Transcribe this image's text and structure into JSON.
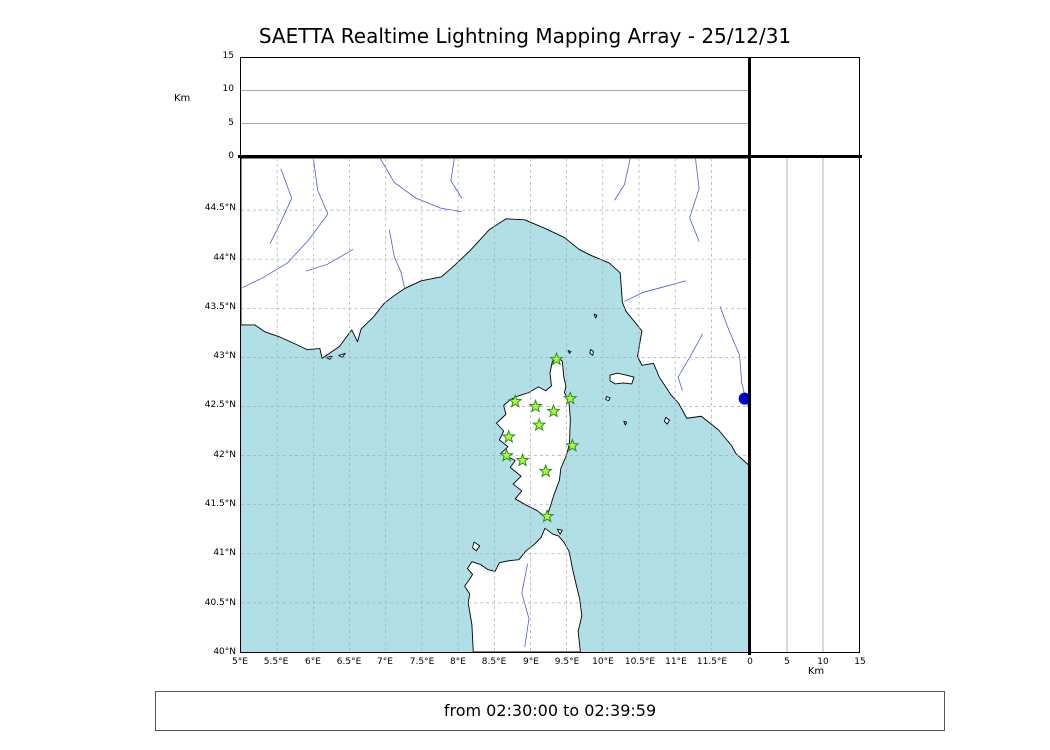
{
  "title": "SAETTA Realtime Lightning Mapping Array - 25/12/31",
  "status_bar": {
    "text": "from 02:30:00 to 02:39:59"
  },
  "colors": {
    "sea": "#b0e0e6",
    "land": "#ffffff",
    "coast": "#000000",
    "river": "#4a5fd0",
    "grid": "#a8a8a8",
    "panel_grid": "#8c8c8c",
    "station_fill": "#adff2f",
    "station_edge": "#2e8b2e",
    "detection_dot": "#0000cd"
  },
  "map": {
    "bounds": {
      "lon_min": 5.0,
      "lon_max": 12.02,
      "lat_min": 40.0,
      "lat_max": 45.03
    },
    "grid_step_deg": 0.5,
    "lon_ticks": [
      {
        "v": 5.0,
        "label": "5°E"
      },
      {
        "v": 5.5,
        "label": "5.5°E"
      },
      {
        "v": 6.0,
        "label": "6°E"
      },
      {
        "v": 6.5,
        "label": "6.5°E"
      },
      {
        "v": 7.0,
        "label": "7°E"
      },
      {
        "v": 7.5,
        "label": "7.5°E"
      },
      {
        "v": 8.0,
        "label": "8°E"
      },
      {
        "v": 8.5,
        "label": "8.5°E"
      },
      {
        "v": 9.0,
        "label": "9°E"
      },
      {
        "v": 9.5,
        "label": "9.5°E"
      },
      {
        "v": 10.0,
        "label": "10°E"
      },
      {
        "v": 10.5,
        "label": "10.5°E"
      },
      {
        "v": 11.0,
        "label": "11°E"
      },
      {
        "v": 11.5,
        "label": "11.5°E"
      }
    ],
    "lat_ticks": [
      {
        "v": 40.0,
        "label": "40°N"
      },
      {
        "v": 40.5,
        "label": "40.5°N"
      },
      {
        "v": 41.0,
        "label": "41°N"
      },
      {
        "v": 41.5,
        "label": "41.5°N"
      },
      {
        "v": 42.0,
        "label": "42°N"
      },
      {
        "v": 42.5,
        "label": "42.5°N"
      },
      {
        "v": 43.0,
        "label": "43°N"
      },
      {
        "v": 43.5,
        "label": "43.5°N"
      },
      {
        "v": 44.0,
        "label": "44°N"
      },
      {
        "v": 44.5,
        "label": "44.5°N"
      }
    ]
  },
  "altitude_axis": {
    "label": "Km",
    "max_km": 15,
    "tick_values": [
      0,
      5,
      10,
      15
    ],
    "gridline_values": [
      5,
      10
    ]
  },
  "stations": [
    {
      "lon": 9.36,
      "lat": 42.98
    },
    {
      "lon": 8.79,
      "lat": 42.55
    },
    {
      "lon": 9.07,
      "lat": 42.5
    },
    {
      "lon": 9.32,
      "lat": 42.45
    },
    {
      "lon": 9.55,
      "lat": 42.58
    },
    {
      "lon": 9.12,
      "lat": 42.31
    },
    {
      "lon": 8.7,
      "lat": 42.19
    },
    {
      "lon": 9.58,
      "lat": 42.1
    },
    {
      "lon": 8.67,
      "lat": 42.0
    },
    {
      "lon": 8.89,
      "lat": 41.95
    },
    {
      "lon": 9.21,
      "lat": 41.84
    },
    {
      "lon": 9.23,
      "lat": 41.38
    }
  ],
  "detection": {
    "lon": 11.96,
    "lat": 42.58
  },
  "features": {
    "land": [
      [
        [
          12.02,
          41.9
        ],
        [
          11.84,
          42.02
        ],
        [
          11.78,
          42.1
        ],
        [
          11.6,
          42.26
        ],
        [
          11.36,
          42.4
        ],
        [
          11.16,
          42.38
        ],
        [
          11.05,
          42.53
        ],
        [
          10.94,
          42.62
        ],
        [
          10.78,
          42.8
        ],
        [
          10.7,
          42.94
        ],
        [
          10.54,
          42.92
        ],
        [
          10.48,
          43.01
        ],
        [
          10.54,
          43.27
        ],
        [
          10.32,
          43.47
        ],
        [
          10.27,
          43.56
        ],
        [
          10.24,
          43.86
        ],
        [
          10.09,
          43.96
        ],
        [
          9.83,
          44.04
        ],
        [
          9.67,
          44.1
        ],
        [
          9.47,
          44.22
        ],
        [
          9.21,
          44.31
        ],
        [
          8.92,
          44.4
        ],
        [
          8.66,
          44.41
        ],
        [
          8.43,
          44.3
        ],
        [
          8.17,
          44.09
        ],
        [
          7.94,
          43.93
        ],
        [
          7.77,
          43.82
        ],
        [
          7.49,
          43.78
        ],
        [
          7.26,
          43.7
        ],
        [
          7.1,
          43.62
        ],
        [
          6.98,
          43.55
        ],
        [
          6.83,
          43.41
        ],
        [
          6.66,
          43.29
        ],
        [
          6.61,
          43.16
        ],
        [
          6.53,
          43.28
        ],
        [
          6.36,
          43.11
        ],
        [
          6.12,
          42.99
        ],
        [
          6.09,
          43.09
        ],
        [
          5.91,
          43.08
        ],
        [
          5.77,
          43.13
        ],
        [
          5.53,
          43.21
        ],
        [
          5.33,
          43.26
        ],
        [
          5.19,
          43.33
        ],
        [
          5.0,
          43.33
        ],
        [
          5.0,
          45.03
        ],
        [
          12.02,
          45.03
        ]
      ],
      [
        [
          9.35,
          43.01
        ],
        [
          9.44,
          42.96
        ],
        [
          9.46,
          42.8
        ],
        [
          9.49,
          42.71
        ],
        [
          9.47,
          42.64
        ],
        [
          9.53,
          42.56
        ],
        [
          9.55,
          42.38
        ],
        [
          9.54,
          42.12
        ],
        [
          9.49,
          41.99
        ],
        [
          9.42,
          41.87
        ],
        [
          9.4,
          41.75
        ],
        [
          9.32,
          41.59
        ],
        [
          9.27,
          41.47
        ],
        [
          9.22,
          41.37
        ],
        [
          9.09,
          41.44
        ],
        [
          8.93,
          41.5
        ],
        [
          8.79,
          41.56
        ],
        [
          8.88,
          41.64
        ],
        [
          8.76,
          41.71
        ],
        [
          8.87,
          41.79
        ],
        [
          8.72,
          41.88
        ],
        [
          8.79,
          41.95
        ],
        [
          8.59,
          42.02
        ],
        [
          8.69,
          42.09
        ],
        [
          8.57,
          42.16
        ],
        [
          8.63,
          42.25
        ],
        [
          8.53,
          42.33
        ],
        [
          8.66,
          42.42
        ],
        [
          8.63,
          42.51
        ],
        [
          8.72,
          42.57
        ],
        [
          8.84,
          42.61
        ],
        [
          8.97,
          42.64
        ],
        [
          9.11,
          42.7
        ],
        [
          9.21,
          42.66
        ],
        [
          9.29,
          42.71
        ],
        [
          9.27,
          42.84
        ],
        [
          9.3,
          42.95
        ]
      ],
      [
        [
          8.21,
          40.0
        ],
        [
          8.19,
          40.28
        ],
        [
          8.14,
          40.5
        ],
        [
          8.16,
          40.59
        ],
        [
          8.09,
          40.67
        ],
        [
          8.15,
          40.73
        ],
        [
          8.2,
          40.79
        ],
        [
          8.13,
          40.85
        ],
        [
          8.19,
          40.92
        ],
        [
          8.31,
          40.89
        ],
        [
          8.41,
          40.84
        ],
        [
          8.51,
          40.82
        ],
        [
          8.57,
          40.91
        ],
        [
          8.71,
          40.93
        ],
        [
          8.84,
          40.94
        ],
        [
          8.94,
          41.03
        ],
        [
          9.06,
          41.1
        ],
        [
          9.15,
          41.17
        ],
        [
          9.2,
          41.26
        ],
        [
          9.31,
          41.2
        ],
        [
          9.39,
          41.18
        ],
        [
          9.46,
          41.12
        ],
        [
          9.53,
          41.03
        ],
        [
          9.56,
          40.93
        ],
        [
          9.58,
          40.85
        ],
        [
          9.63,
          40.69
        ],
        [
          9.68,
          40.54
        ],
        [
          9.71,
          40.37
        ],
        [
          9.66,
          40.21
        ],
        [
          9.69,
          40.0
        ]
      ],
      [
        [
          10.1,
          42.82
        ],
        [
          10.2,
          42.84
        ],
        [
          10.32,
          42.82
        ],
        [
          10.43,
          42.8
        ],
        [
          10.4,
          42.73
        ],
        [
          10.28,
          42.74
        ],
        [
          10.17,
          42.73
        ],
        [
          10.1,
          42.76
        ]
      ],
      [
        [
          9.83,
          43.08
        ],
        [
          9.87,
          43.06
        ],
        [
          9.86,
          43.02
        ],
        [
          9.82,
          43.04
        ]
      ],
      [
        [
          9.88,
          43.44
        ],
        [
          9.92,
          43.43
        ],
        [
          9.9,
          43.4
        ]
      ],
      [
        [
          9.52,
          43.07
        ],
        [
          9.56,
          43.06
        ],
        [
          9.54,
          43.04
        ]
      ],
      [
        [
          10.05,
          42.6
        ],
        [
          10.1,
          42.59
        ],
        [
          10.08,
          42.56
        ],
        [
          10.04,
          42.57
        ]
      ],
      [
        [
          10.29,
          42.35
        ],
        [
          10.33,
          42.34
        ],
        [
          10.31,
          42.31
        ]
      ],
      [
        [
          10.87,
          42.39
        ],
        [
          10.92,
          42.36
        ],
        [
          10.89,
          42.32
        ],
        [
          10.85,
          42.35
        ]
      ],
      [
        [
          6.17,
          43.0
        ],
        [
          6.26,
          43.01
        ],
        [
          6.23,
          42.98
        ]
      ],
      [
        [
          6.35,
          43.02
        ],
        [
          6.44,
          43.04
        ],
        [
          6.4,
          43.0
        ]
      ],
      [
        [
          8.22,
          41.12
        ],
        [
          8.3,
          41.08
        ],
        [
          8.25,
          41.03
        ],
        [
          8.2,
          41.06
        ]
      ],
      [
        [
          9.37,
          41.25
        ],
        [
          9.44,
          41.24
        ],
        [
          9.41,
          41.2
        ]
      ]
    ],
    "rivers": [
      [
        [
          6.0,
          45.03
        ],
        [
          6.06,
          44.7
        ],
        [
          6.2,
          44.46
        ],
        [
          5.94,
          44.2
        ],
        [
          5.64,
          43.96
        ],
        [
          5.3,
          43.81
        ],
        [
          5.02,
          43.71
        ]
      ],
      [
        [
          6.55,
          44.1
        ],
        [
          6.2,
          43.95
        ],
        [
          5.9,
          43.88
        ]
      ],
      [
        [
          7.05,
          44.3
        ],
        [
          7.12,
          44.02
        ],
        [
          7.21,
          43.87
        ],
        [
          7.26,
          43.71
        ]
      ],
      [
        [
          6.92,
          45.03
        ],
        [
          7.12,
          44.78
        ],
        [
          7.42,
          44.62
        ],
        [
          7.76,
          44.52
        ],
        [
          8.05,
          44.48
        ]
      ],
      [
        [
          7.95,
          45.03
        ],
        [
          7.9,
          44.8
        ],
        [
          8.05,
          44.62
        ]
      ],
      [
        [
          10.38,
          45.03
        ],
        [
          10.3,
          44.76
        ],
        [
          10.16,
          44.6
        ]
      ],
      [
        [
          11.28,
          45.03
        ],
        [
          11.33,
          44.72
        ],
        [
          11.2,
          44.42
        ],
        [
          11.33,
          44.18
        ]
      ],
      [
        [
          11.15,
          43.78
        ],
        [
          10.85,
          43.72
        ],
        [
          10.55,
          43.66
        ],
        [
          10.3,
          43.57
        ]
      ],
      [
        [
          11.62,
          43.52
        ],
        [
          11.74,
          43.28
        ],
        [
          11.89,
          43.02
        ],
        [
          11.92,
          42.74
        ],
        [
          12.0,
          42.5
        ]
      ],
      [
        [
          11.38,
          43.24
        ],
        [
          11.2,
          43.0
        ],
        [
          11.04,
          42.8
        ],
        [
          11.1,
          42.66
        ]
      ],
      [
        [
          8.96,
          40.9
        ],
        [
          8.88,
          40.6
        ],
        [
          8.98,
          40.34
        ],
        [
          8.92,
          40.05
        ]
      ],
      [
        [
          5.55,
          44.92
        ],
        [
          5.7,
          44.62
        ],
        [
          5.54,
          44.36
        ],
        [
          5.4,
          44.16
        ]
      ]
    ]
  }
}
